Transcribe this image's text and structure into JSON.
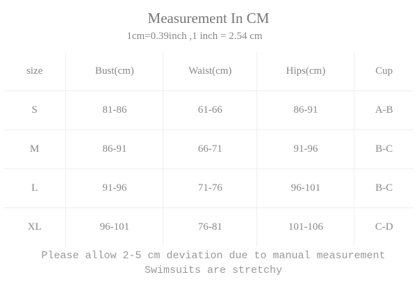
{
  "header": {
    "title": "Measurement In CM",
    "subtitle": "1cm=0.39inch ,1 inch = 2.54 cm"
  },
  "table": {
    "columns": [
      "size",
      "Bust(cm)",
      "Waist(cm)",
      "Hips(cm)",
      "Cup"
    ],
    "rows": [
      [
        "S",
        "81-86",
        "61-66",
        "86-91",
        "A-B"
      ],
      [
        "M",
        "86-91",
        "66-71",
        "91-96",
        "B-C"
      ],
      [
        "L",
        "91-96",
        "71-76",
        "96-101",
        "B-C"
      ],
      [
        "XL",
        "96-101",
        "76-81",
        "101-106",
        "C-D"
      ]
    ]
  },
  "footer": {
    "notes": [
      "Please allow 2-5 cm deviation due to manual measurement",
      "Swimsuits are stretchy"
    ]
  }
}
